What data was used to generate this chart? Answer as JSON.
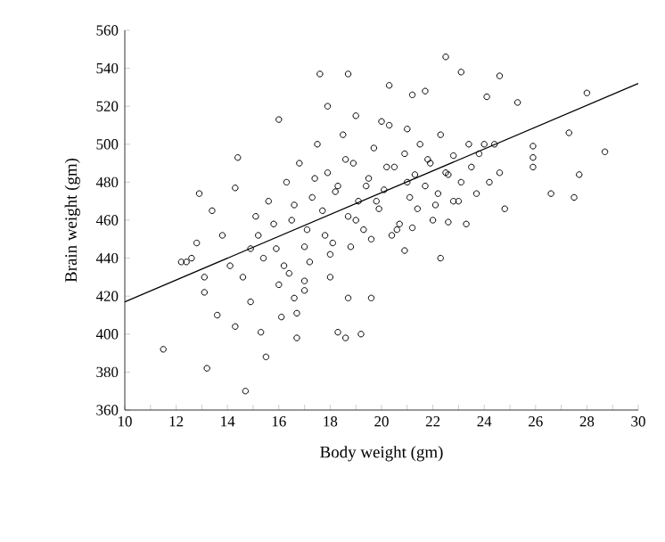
{
  "chart_data": {
    "type": "scatter",
    "xlabel": "Body weight (gm)",
    "ylabel": "Brain weight (gm)",
    "xlim": [
      10,
      30
    ],
    "ylim": [
      360,
      560
    ],
    "xticks": [
      10,
      {
        "value": 11,
        "label": null
      },
      12,
      {
        "value": 13,
        "label": null
      },
      14,
      {
        "value": 15,
        "label": null
      },
      16,
      {
        "value": 17,
        "label": null
      },
      18,
      {
        "value": 19,
        "label": null
      },
      20,
      {
        "value": 21,
        "label": null
      },
      22,
      {
        "value": 23,
        "label": null
      },
      24,
      {
        "value": 25,
        "label": null
      },
      26,
      {
        "value": 27,
        "label": null
      },
      28,
      {
        "value": 29,
        "label": null
      },
      30
    ],
    "yticks": [
      360,
      380,
      400,
      420,
      440,
      460,
      480,
      500,
      520,
      540,
      560
    ],
    "marker": "circle",
    "grid": false,
    "series": [
      {
        "color": "#000000",
        "x": [
          17.6,
          18.7,
          17.9,
          16.0,
          14.4,
          12.9,
          13.4,
          14.3,
          20.3,
          22.5,
          23.1,
          24.6,
          28.0,
          25.3,
          27.3,
          28.7,
          25.9,
          25.9,
          25.9,
          27.7,
          26.6,
          27.5,
          24.8,
          23.7,
          24.6,
          24.2,
          21.2,
          21.7,
          24.1,
          11.5,
          13.2,
          14.7,
          15.5,
          12.8,
          12.4,
          13.1,
          13.1,
          13.6,
          14.3,
          14.9,
          15.3,
          16.7,
          18.3,
          18.6,
          19.2,
          18.7,
          19.6,
          16.7,
          16.1,
          17.0,
          16.6,
          22.3,
          22.6,
          20.9,
          15.2,
          15.6,
          15.9,
          16.3,
          16.5,
          16.8,
          17.1,
          17.3,
          17.5,
          17.7,
          17.9,
          18.1,
          18.3,
          18.5,
          18.7,
          18.9,
          19.1,
          19.3,
          19.5,
          19.7,
          19.9,
          20.1,
          20.3,
          20.5,
          20.7,
          20.9,
          21.1,
          21.3,
          21.5,
          21.7,
          21.9,
          22.1,
          22.3,
          22.5,
          22.8,
          23.1,
          23.4,
          23.8,
          15.4,
          15.8,
          16.2,
          16.6,
          17.0,
          17.4,
          17.8,
          18.2,
          18.6,
          19.0,
          19.4,
          19.8,
          20.2,
          20.6,
          21.0,
          21.4,
          21.8,
          22.2,
          22.6,
          23.0,
          23.5,
          24.0,
          14.6,
          14.9,
          15.1,
          16.4,
          17.2,
          18.0,
          18.8,
          19.6,
          20.4,
          21.2,
          22.0,
          12.2,
          12.6,
          13.8,
          14.1,
          19.0,
          20.0,
          21.0,
          18.0,
          17.0,
          16.0,
          22.8,
          23.3,
          24.4
        ],
        "values": [
          537,
          537,
          520,
          513,
          493,
          474,
          465,
          477,
          531,
          546,
          538,
          536,
          527,
          522,
          506,
          496,
          499,
          493,
          488,
          484,
          474,
          472,
          466,
          474,
          485,
          480,
          526,
          528,
          525,
          392,
          382,
          370,
          388,
          448,
          438,
          430,
          422,
          410,
          404,
          417,
          401,
          398,
          401,
          398,
          400,
          419,
          419,
          411,
          409,
          423,
          419,
          440,
          459,
          444,
          452,
          470,
          445,
          480,
          460,
          490,
          455,
          472,
          500,
          465,
          485,
          448,
          478,
          505,
          462,
          490,
          470,
          455,
          482,
          498,
          466,
          476,
          510,
          488,
          458,
          495,
          472,
          484,
          500,
          478,
          490,
          468,
          505,
          485,
          494,
          480,
          500,
          495,
          440,
          458,
          436,
          468,
          446,
          482,
          452,
          475,
          492,
          460,
          478,
          470,
          488,
          455,
          480,
          466,
          492,
          474,
          484,
          470,
          488,
          500,
          430,
          445,
          462,
          432,
          438,
          442,
          446,
          450,
          452,
          456,
          460,
          438,
          440,
          452,
          436,
          515,
          512,
          508,
          430,
          428,
          426,
          470,
          458,
          500
        ]
      },
      {
        "color": "#000000",
        "type": "line",
        "marker": "none",
        "x": [
          10,
          30
        ],
        "values": [
          417,
          532
        ]
      }
    ]
  }
}
